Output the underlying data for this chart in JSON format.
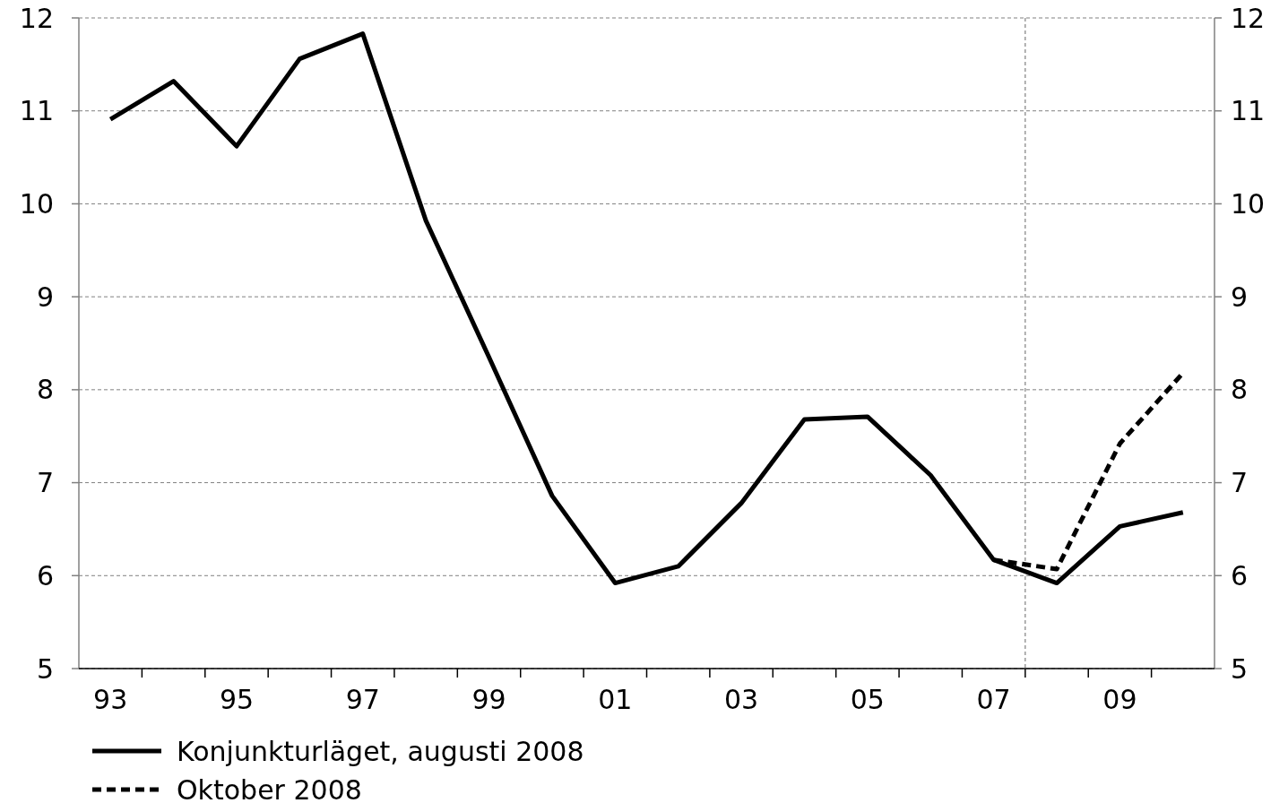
{
  "chart_data": {
    "type": "line",
    "x": [
      1993,
      1994,
      1995,
      1996,
      1997,
      1998,
      1999,
      2000,
      2001,
      2002,
      2003,
      2004,
      2005,
      2006,
      2007,
      2008,
      2009,
      2010
    ],
    "series": [
      {
        "name": "Konjunkturläget, augusti 2008",
        "color": "#000000",
        "line_style": "solid",
        "values": [
          10.91,
          11.32,
          10.62,
          11.56,
          11.83,
          9.82,
          8.35,
          6.86,
          5.92,
          6.1,
          6.78,
          7.68,
          7.71,
          7.08,
          6.17,
          5.92,
          6.53,
          6.68
        ]
      },
      {
        "name": "Oktober 2008",
        "color": "#000000",
        "line_style": "dashed",
        "x": [
          2007,
          2008,
          2009,
          2010
        ],
        "values": [
          6.17,
          6.07,
          7.42,
          8.18
        ]
      }
    ],
    "xlim": [
      1992.5,
      2010.5
    ],
    "xticks": [
      {
        "value": 1993,
        "label": "93"
      },
      {
        "value": 1995,
        "label": "95"
      },
      {
        "value": 1997,
        "label": "97"
      },
      {
        "value": 1999,
        "label": "99"
      },
      {
        "value": 2001,
        "label": "01"
      },
      {
        "value": 2003,
        "label": "03"
      },
      {
        "value": 2005,
        "label": "05"
      },
      {
        "value": 2007,
        "label": "07"
      },
      {
        "value": 2009,
        "label": "09"
      },
      {
        "value": 1993.5,
        "label": null
      },
      {
        "value": 1994.5,
        "label": null
      },
      {
        "value": 1995.5,
        "label": null
      },
      {
        "value": 1996.5,
        "label": null
      },
      {
        "value": 1997.5,
        "label": null
      },
      {
        "value": 1998.5,
        "label": null
      },
      {
        "value": 1999.5,
        "label": null
      },
      {
        "value": 2000.5,
        "label": null
      },
      {
        "value": 2001.5,
        "label": null
      },
      {
        "value": 2002.5,
        "label": null
      },
      {
        "value": 2003.5,
        "label": null
      },
      {
        "value": 2004.5,
        "label": null
      },
      {
        "value": 2005.5,
        "label": null
      },
      {
        "value": 2006.5,
        "label": null
      },
      {
        "value": 2007.5,
        "label": null
      },
      {
        "value": 2008.5,
        "label": null
      },
      {
        "value": 2009.5,
        "label": null
      }
    ],
    "ylim": [
      5,
      12
    ],
    "yticks": [
      5,
      6,
      7,
      8,
      9,
      10,
      11,
      12
    ],
    "y2lim": [
      5,
      12
    ],
    "y2ticks": [
      5,
      6,
      7,
      8,
      9,
      10,
      11,
      12
    ],
    "ref_lines": [
      {
        "axis": "x",
        "value": 2007.5,
        "color": "#808080",
        "line_style": "dashed"
      }
    ],
    "grid": "y",
    "legend": "bottom",
    "marker": "none"
  }
}
